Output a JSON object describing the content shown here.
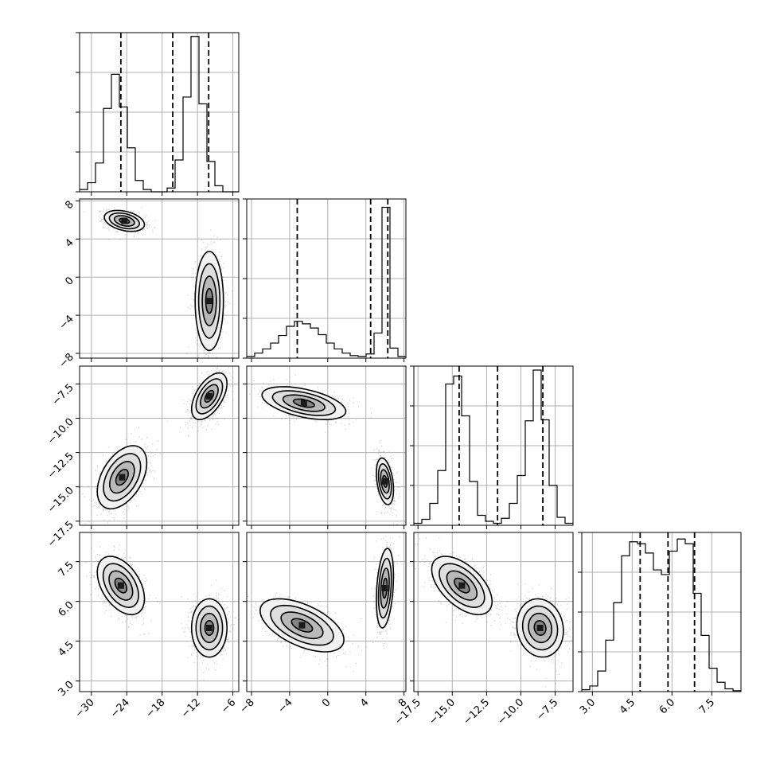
{
  "chart_data": {
    "type": "corner",
    "parameters": [
      {
        "range": [
          -32,
          -5
        ],
        "ticks": [
          -30,
          -24,
          -18,
          -12,
          -6
        ],
        "tick_labels": [
          "−30",
          "−24",
          "−18",
          "−12",
          "−6"
        ],
        "hist_bins": [
          -32,
          -30.65,
          -29.3,
          -27.95,
          -26.6,
          -25.25,
          -23.9,
          -22.55,
          -21.2,
          -19.85,
          -18.5,
          -17.15,
          -15.8,
          -14.45,
          -13.1,
          -11.75,
          -10.4,
          -9.05,
          -7.7,
          -6.35,
          -5
        ],
        "hist_heights": [
          0.3,
          1.2,
          3.8,
          11.0,
          15.5,
          11.2,
          5.8,
          1.5,
          0.3,
          0.0,
          0.0,
          0.5,
          4.2,
          12.5,
          20.5,
          11.6,
          4.0,
          0.8,
          0.0,
          0.0
        ],
        "hist_ymax": 21,
        "quantiles": [
          -25.0,
          -16.2,
          -10.1
        ]
      },
      {
        "range": [
          -8.5,
          8.2
        ],
        "ticks": [
          -8,
          -4,
          0,
          4,
          8
        ],
        "tick_labels": [
          "−8",
          "−4",
          "0",
          "4",
          "8"
        ],
        "hist_bins": [
          -8.5,
          -7.665,
          -6.83,
          -5.995,
          -5.16,
          -4.325,
          -3.49,
          -2.655,
          -1.82,
          -0.985,
          -0.15,
          0.685,
          1.52,
          2.355,
          3.19,
          4.025,
          4.86,
          5.695,
          6.53,
          7.365,
          8.2
        ],
        "hist_heights": [
          0.2,
          0.6,
          1.1,
          1.8,
          2.7,
          3.8,
          4.4,
          4.1,
          3.6,
          2.8,
          1.8,
          1.1,
          0.6,
          0.3,
          0.2,
          0.5,
          3.0,
          18.0,
          1.2,
          0.2
        ],
        "hist_ymax": 19,
        "quantiles": [
          -3.2,
          4.5,
          6.3
        ]
      },
      {
        "range": [
          -17.8,
          -6.2
        ],
        "ticks": [
          -17.5,
          -15.0,
          -12.5,
          -10.0,
          -7.5
        ],
        "tick_labels": [
          "−17.5",
          "−15.0",
          "−12.5",
          "−10.0",
          "−7.5"
        ],
        "hist_bins": [
          -17.8,
          -17.22,
          -16.64,
          -16.06,
          -15.48,
          -14.9,
          -14.32,
          -13.74,
          -13.16,
          -12.58,
          -12.0,
          -11.42,
          -10.84,
          -10.26,
          -9.68,
          -9.1,
          -8.52,
          -7.94,
          -7.36,
          -6.78,
          -6.2
        ],
        "hist_heights": [
          0.2,
          0.6,
          2.2,
          5.5,
          14.2,
          15.0,
          11.0,
          4.4,
          1.0,
          0.4,
          0.2,
          0.7,
          2.2,
          5.0,
          10.5,
          15.6,
          10.6,
          4.0,
          0.8,
          0.2
        ],
        "hist_ymax": 16,
        "quantiles": [
          -14.5,
          -11.7,
          -8.4
        ]
      },
      {
        "range": [
          2.6,
          8.6
        ],
        "ticks": [
          3.0,
          4.5,
          6.0,
          7.5
        ],
        "tick_labels": [
          "3.0",
          "4.5",
          "6.0",
          "7.5"
        ],
        "hist_bins": [
          2.6,
          2.9,
          3.2,
          3.5,
          3.8,
          4.1,
          4.4,
          4.7,
          5.0,
          5.3,
          5.6,
          5.9,
          6.2,
          6.5,
          6.8,
          7.1,
          7.4,
          7.7,
          8.0,
          8.3,
          8.6
        ],
        "hist_heights": [
          0.2,
          0.6,
          2.2,
          5.5,
          9.5,
          14.5,
          16.0,
          15.8,
          14.8,
          13.0,
          12.5,
          15.0,
          16.3,
          15.8,
          10.5,
          6.0,
          2.5,
          1.0,
          0.3,
          0.1
        ],
        "hist_ymax": 17,
        "quantiles": [
          4.8,
          5.85,
          6.85
        ]
      }
    ],
    "pairs": [
      {
        "x_param": 0,
        "y_param": 1,
        "modes": [
          {
            "center": [
              -24.4,
              5.9
            ],
            "sd": [
              1.7,
              0.55
            ],
            "rho": -0.35,
            "weight": 0.5
          },
          {
            "center": [
              -10.0,
              -2.5
            ],
            "sd": [
              1.2,
              2.6
            ],
            "rho": 0.0,
            "weight": 0.5
          }
        ]
      },
      {
        "x_param": 0,
        "y_param": 2,
        "modes": [
          {
            "center": [
              -24.8,
              -14.3
            ],
            "sd": [
              2.1,
              1.15
            ],
            "rho": 0.45,
            "weight": 0.5
          },
          {
            "center": [
              -10.0,
              -8.4
            ],
            "sd": [
              1.5,
              0.85
            ],
            "rho": 0.55,
            "weight": 0.5
          }
        ]
      },
      {
        "x_param": 0,
        "y_param": 3,
        "modes": [
          {
            "center": [
              -25.0,
              6.6
            ],
            "sd": [
              2.0,
              0.55
            ],
            "rho": -0.45,
            "weight": 0.5
          },
          {
            "center": [
              -10.0,
              5.0
            ],
            "sd": [
              1.5,
              0.55
            ],
            "rho": 0.0,
            "weight": 0.5
          }
        ]
      },
      {
        "x_param": 1,
        "y_param": 2,
        "modes": [
          {
            "center": [
              -2.5,
              -8.9
            ],
            "sd": [
              2.2,
              0.6
            ],
            "rho": -0.5,
            "weight": 0.5
          },
          {
            "center": [
              6.0,
              -14.6
            ],
            "sd": [
              0.45,
              0.85
            ],
            "rho": -0.35,
            "weight": 0.5
          }
        ]
      },
      {
        "x_param": 1,
        "y_param": 3,
        "modes": [
          {
            "center": [
              -2.7,
              5.1
            ],
            "sd": [
              2.2,
              0.5
            ],
            "rho": -0.55,
            "weight": 0.5
          },
          {
            "center": [
              6.0,
              6.5
            ],
            "sd": [
              0.45,
              0.75
            ],
            "rho": 0.3,
            "weight": 0.5
          }
        ]
      },
      {
        "x_param": 2,
        "y_param": 3,
        "modes": [
          {
            "center": [
              -14.3,
              6.6
            ],
            "sd": [
              1.1,
              0.55
            ],
            "rho": -0.55,
            "weight": 0.5
          },
          {
            "center": [
              -8.6,
              5.0
            ],
            "sd": [
              0.85,
              0.55
            ],
            "rho": -0.1,
            "weight": 0.5
          }
        ]
      }
    ],
    "contour_levels_sigma": [
      0.5,
      1.0,
      1.5,
      2.0
    ],
    "grid": true
  }
}
